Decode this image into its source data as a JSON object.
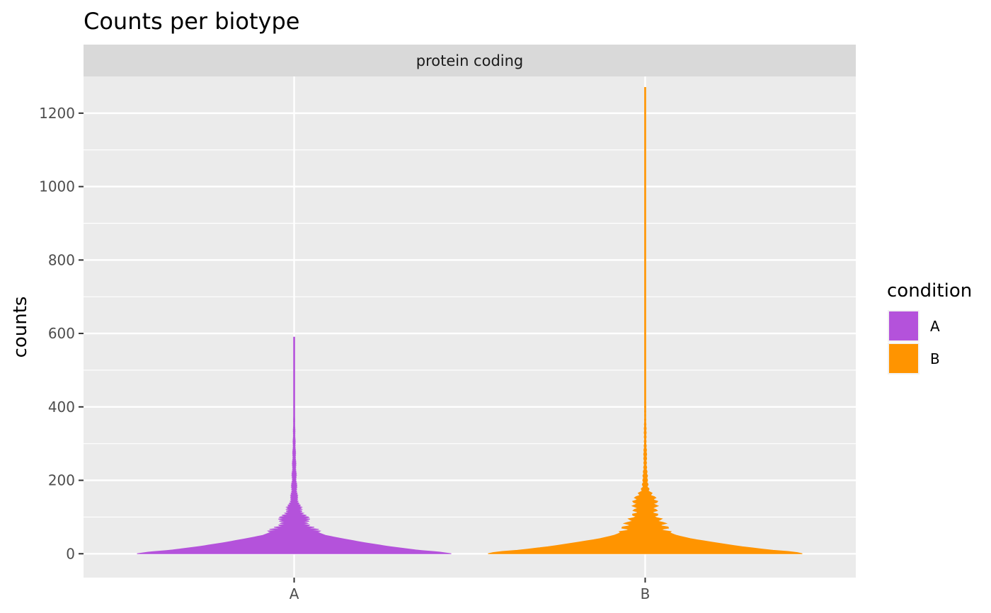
{
  "chart_data": {
    "type": "violin",
    "title": "Counts per biotype",
    "facet": "protein coding",
    "xlabel": "",
    "ylabel": "counts",
    "categories": [
      "A",
      "B"
    ],
    "yticks": [
      0,
      200,
      400,
      600,
      800,
      1000,
      1200
    ],
    "ylim": [
      -65,
      1300
    ],
    "grid": true,
    "legend": {
      "title": "condition",
      "position": "right",
      "entries": [
        {
          "label": "A",
          "color": "#B452DB"
        },
        {
          "label": "B",
          "color": "#FF9400"
        }
      ]
    },
    "series": [
      {
        "name": "A",
        "color": "#B452DB",
        "max": 590,
        "density_profile": [
          [
            0,
            1.0
          ],
          [
            5,
            0.92
          ],
          [
            10,
            0.78
          ],
          [
            20,
            0.6
          ],
          [
            30,
            0.45
          ],
          [
            40,
            0.32
          ],
          [
            50,
            0.2
          ],
          [
            60,
            0.14
          ],
          [
            70,
            0.1
          ],
          [
            80,
            0.085
          ],
          [
            100,
            0.07
          ],
          [
            120,
            0.04
          ],
          [
            150,
            0.018
          ],
          [
            200,
            0.012
          ],
          [
            250,
            0.009
          ],
          [
            300,
            0.006
          ],
          [
            350,
            0.004
          ],
          [
            400,
            0.002
          ],
          [
            500,
            0.001
          ],
          [
            590,
            0.001
          ]
        ]
      },
      {
        "name": "B",
        "color": "#FF9400",
        "max": 1270,
        "density_profile": [
          [
            0,
            1.0
          ],
          [
            5,
            0.95
          ],
          [
            10,
            0.8
          ],
          [
            20,
            0.6
          ],
          [
            30,
            0.45
          ],
          [
            40,
            0.3
          ],
          [
            50,
            0.2
          ],
          [
            60,
            0.14
          ],
          [
            80,
            0.1
          ],
          [
            100,
            0.08
          ],
          [
            150,
            0.055
          ],
          [
            180,
            0.02
          ],
          [
            200,
            0.012
          ],
          [
            250,
            0.008
          ],
          [
            300,
            0.006
          ],
          [
            400,
            0.003
          ],
          [
            500,
            0.002
          ],
          [
            700,
            0.0012
          ],
          [
            1000,
            0.0008
          ],
          [
            1270,
            0.0005
          ]
        ]
      }
    ]
  }
}
